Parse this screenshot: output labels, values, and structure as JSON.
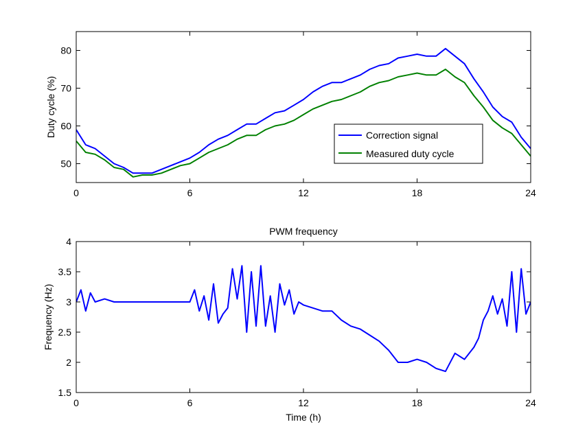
{
  "chart_data": [
    {
      "type": "line",
      "title": "",
      "xlabel": "",
      "ylabel": "Duty cycle (%)",
      "xlim": [
        0,
        24
      ],
      "ylim": [
        45,
        85
      ],
      "xticks": [
        0,
        6,
        12,
        18,
        24
      ],
      "yticks": [
        50,
        60,
        70,
        80
      ],
      "xtick_labels": [
        "0",
        "6",
        "12",
        "18",
        "24"
      ],
      "ytick_labels": [
        "50",
        "60",
        "70",
        "80"
      ],
      "grid": false,
      "legend_position": "middle-right",
      "series": [
        {
          "name": "Correction signal",
          "color": "#0000ff",
          "x": [
            0,
            0.5,
            1,
            1.5,
            2,
            2.5,
            3,
            3.5,
            4,
            4.5,
            5,
            5.5,
            6,
            6.5,
            7,
            7.5,
            8,
            8.5,
            9,
            9.5,
            10,
            10.5,
            11,
            11.5,
            12,
            12.5,
            13,
            13.5,
            14,
            14.5,
            15,
            15.5,
            16,
            16.5,
            17,
            17.5,
            18,
            18.5,
            19,
            19.5,
            20,
            20.5,
            21,
            21.5,
            22,
            22.5,
            23,
            23.5,
            24
          ],
          "y": [
            59,
            55,
            54,
            52,
            50,
            49,
            47.5,
            47.5,
            47.5,
            48.5,
            49.5,
            50.5,
            51.5,
            53,
            55,
            56.5,
            57.5,
            59,
            60.5,
            60.5,
            62,
            63.5,
            64,
            65.5,
            67,
            69,
            70.5,
            71.5,
            71.5,
            72.5,
            73.5,
            75,
            76,
            76.5,
            78,
            78.5,
            79,
            78.5,
            78.5,
            80.5,
            78.5,
            76.5,
            72.5,
            69,
            65,
            62.5,
            61,
            57,
            54
          ]
        },
        {
          "name": "Measured duty cycle",
          "color": "#008000",
          "x": [
            0,
            0.5,
            1,
            1.5,
            2,
            2.5,
            3,
            3.5,
            4,
            4.5,
            5,
            5.5,
            6,
            6.5,
            7,
            7.5,
            8,
            8.5,
            9,
            9.5,
            10,
            10.5,
            11,
            11.5,
            12,
            12.5,
            13,
            13.5,
            14,
            14.5,
            15,
            15.5,
            16,
            16.5,
            17,
            17.5,
            18,
            18.5,
            19,
            19.5,
            20,
            20.5,
            21,
            21.5,
            22,
            22.5,
            23,
            23.5,
            24
          ],
          "y": [
            56,
            53,
            52.5,
            51,
            49,
            48.5,
            46.5,
            47,
            47,
            47.5,
            48.5,
            49.5,
            50,
            51.5,
            53,
            54,
            55,
            56.5,
            57.5,
            57.5,
            59,
            60,
            60.5,
            61.5,
            63,
            64.5,
            65.5,
            66.5,
            67,
            68,
            69,
            70.5,
            71.5,
            72,
            73,
            73.5,
            74,
            73.5,
            73.5,
            75,
            73,
            71.5,
            68,
            65,
            61.5,
            59.5,
            58,
            55,
            52
          ]
        }
      ]
    },
    {
      "type": "line",
      "title": "PWM frequency",
      "xlabel": "Time (h)",
      "ylabel": "Frequency (Hz)",
      "xlim": [
        0,
        24
      ],
      "ylim": [
        1.5,
        4
      ],
      "xticks": [
        0,
        6,
        12,
        18,
        24
      ],
      "yticks": [
        1.5,
        2,
        2.5,
        3,
        3.5,
        4
      ],
      "xtick_labels": [
        "0",
        "6",
        "12",
        "18",
        "24"
      ],
      "ytick_labels": [
        "1.5",
        "2",
        "2.5",
        "3",
        "3.5",
        "4"
      ],
      "grid": false,
      "series": [
        {
          "color": "#0000ff",
          "x": [
            0,
            0.25,
            0.5,
            0.75,
            1,
            1.5,
            2,
            2.5,
            3,
            3.5,
            4,
            4.5,
            5,
            5.5,
            6,
            6.25,
            6.5,
            6.75,
            7,
            7.25,
            7.5,
            7.75,
            8,
            8.25,
            8.5,
            8.75,
            9,
            9.25,
            9.5,
            9.75,
            10,
            10.25,
            10.5,
            10.75,
            11,
            11.25,
            11.5,
            11.75,
            12,
            12.5,
            13,
            13.5,
            14,
            14.5,
            15,
            15.5,
            16,
            16.5,
            17,
            17.5,
            18,
            18.5,
            19,
            19.5,
            20,
            20.5,
            21,
            21.25,
            21.5,
            21.75,
            22,
            22.25,
            22.5,
            22.75,
            23,
            23.25,
            23.5,
            23.75,
            24
          ],
          "y": [
            3.0,
            3.2,
            2.85,
            3.15,
            3.0,
            3.05,
            3.0,
            3.0,
            3.0,
            3.0,
            3.0,
            3.0,
            3.0,
            3.0,
            3.0,
            3.2,
            2.85,
            3.1,
            2.7,
            3.3,
            2.65,
            2.8,
            2.9,
            3.55,
            3.05,
            3.6,
            2.5,
            3.5,
            2.6,
            3.6,
            2.6,
            3.1,
            2.5,
            3.3,
            2.95,
            3.2,
            2.8,
            3.0,
            2.95,
            2.9,
            2.85,
            2.85,
            2.7,
            2.6,
            2.55,
            2.45,
            2.35,
            2.2,
            2.0,
            2.0,
            2.05,
            2.0,
            1.9,
            1.85,
            2.15,
            2.05,
            2.25,
            2.4,
            2.7,
            2.85,
            3.1,
            2.8,
            3.05,
            2.6,
            3.5,
            2.5,
            3.55,
            2.8,
            3.0
          ]
        }
      ]
    }
  ],
  "legend": {
    "entries": [
      "Correction signal",
      "Measured duty cycle"
    ]
  }
}
